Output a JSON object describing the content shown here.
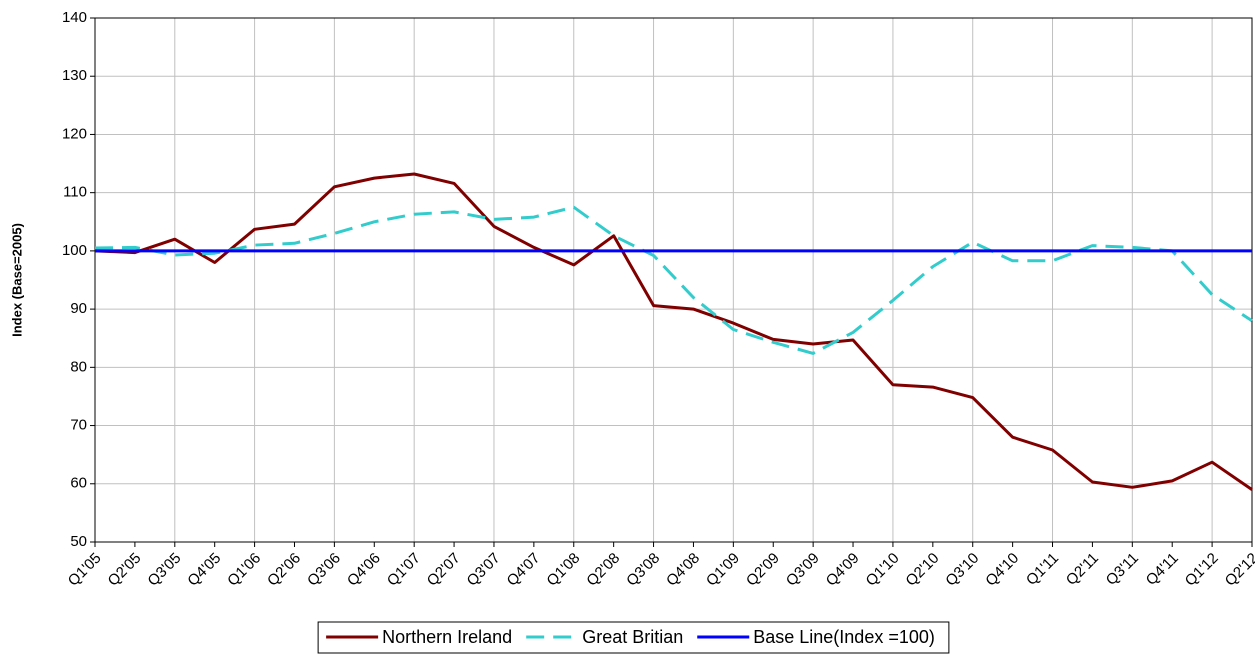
{
  "chart_data": {
    "type": "line",
    "y_label": "Index (Base=2005)",
    "categories": [
      "Q1'05",
      "Q2'05",
      "Q3'05",
      "Q4'05",
      "Q1'06",
      "Q2'06",
      "Q3'06",
      "Q4'06",
      "Q1'07",
      "Q2'07",
      "Q3'07",
      "Q4'07",
      "Q1'08",
      "Q2'08",
      "Q3'08",
      "Q4'08",
      "Q1'09",
      "Q2'09",
      "Q3'09",
      "Q4'09",
      "Q1'10",
      "Q2'10",
      "Q3'10",
      "Q4'10",
      "Q1'11",
      "Q2'11",
      "Q3'11",
      "Q4'11",
      "Q1'12",
      "Q2'12"
    ],
    "series": [
      {
        "name": "Northern Ireland",
        "color": "#800000",
        "style": "solid",
        "values": [
          100,
          99.7,
          102,
          98,
          103.7,
          104.6,
          111,
          112.5,
          113.2,
          111.6,
          104.2,
          100.6,
          97.6,
          102.6,
          90.6,
          90,
          87.6,
          84.8,
          84,
          84.7,
          77,
          76.6,
          74.8,
          68,
          65.8,
          60.3,
          59.4,
          60.5,
          63.7,
          59
        ]
      },
      {
        "name": "Great Britian",
        "color": "#33cccc",
        "style": "dashed",
        "values": [
          100.5,
          100.6,
          99.3,
          99.6,
          101,
          101.3,
          103,
          105,
          106.3,
          106.7,
          105.4,
          105.8,
          107.5,
          102.6,
          99.2,
          92,
          86.5,
          84.3,
          82.4,
          86,
          91.5,
          97.3,
          101.5,
          98.3,
          98.3,
          100.9,
          100.6,
          100,
          92.5,
          88
        ]
      },
      {
        "name": "Base Line(Index =100)",
        "color": "#0000ff",
        "style": "solid",
        "values": [
          100,
          100,
          100,
          100,
          100,
          100,
          100,
          100,
          100,
          100,
          100,
          100,
          100,
          100,
          100,
          100,
          100,
          100,
          100,
          100,
          100,
          100,
          100,
          100,
          100,
          100,
          100,
          100,
          100,
          100
        ]
      }
    ],
    "ylim": [
      50,
      140
    ],
    "yticks": [
      50,
      60,
      70,
      80,
      90,
      100,
      110,
      120,
      130,
      140
    ],
    "grid": true,
    "legend": "bottom"
  }
}
